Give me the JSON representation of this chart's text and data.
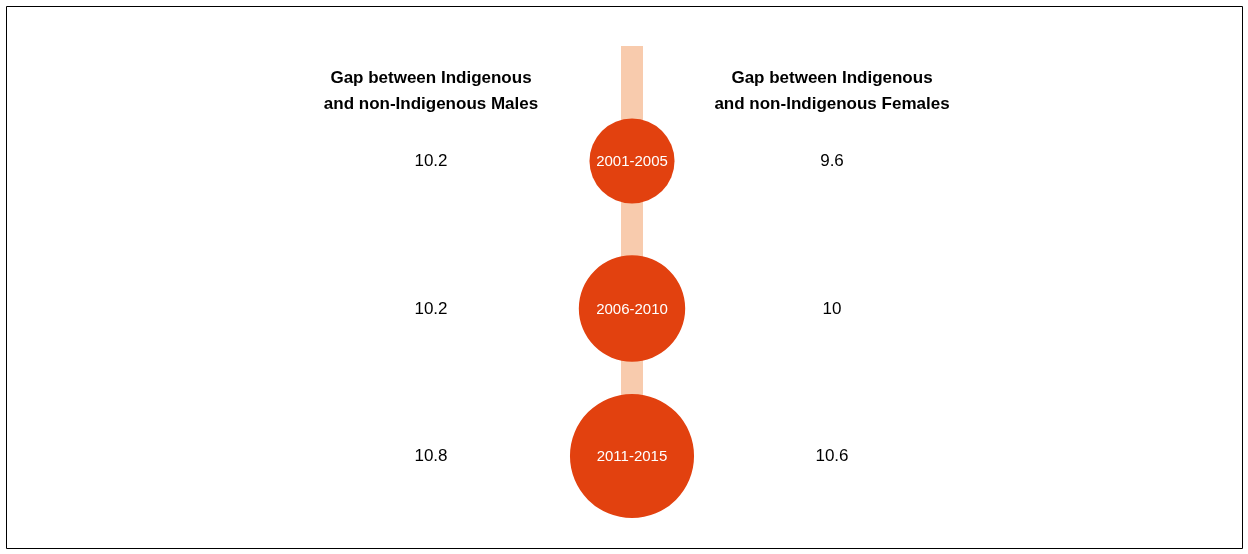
{
  "chart_data": {
    "type": "other",
    "categories": [
      "2001-2005",
      "2006-2010",
      "2011-2015"
    ],
    "colors": [
      "#e2410f",
      "#e2410f",
      "#e2410f"
    ],
    "series": [
      {
        "name": "Gap between Indigenous and non-Indigenous Males",
        "color": "#000000",
        "values": [
          10.2,
          10.2,
          10.8
        ]
      },
      {
        "name": "Gap between Indigenous and non-Indigenous Females",
        "color": "#000000",
        "values": [
          9.6,
          10,
          10.6
        ]
      }
    ],
    "data_labels": true
  }
}
